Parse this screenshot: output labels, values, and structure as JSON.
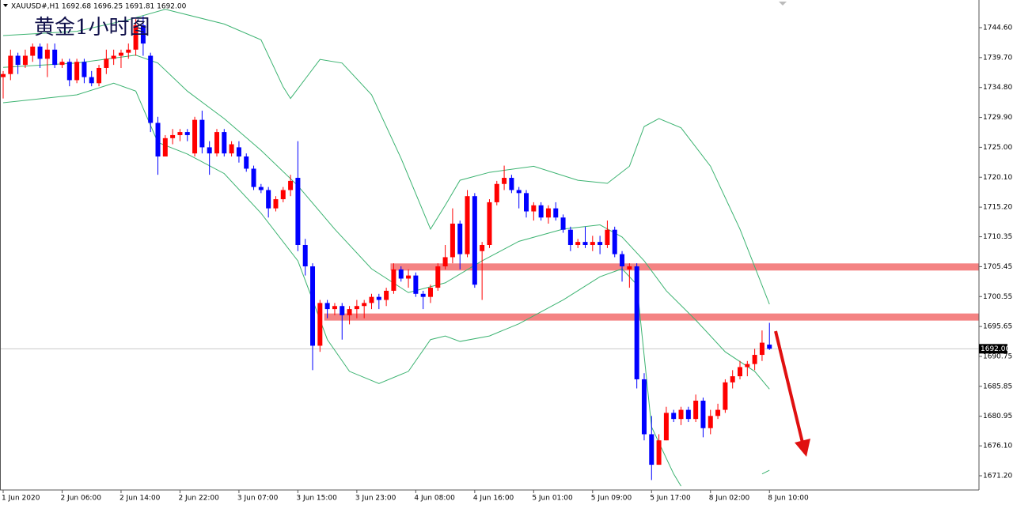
{
  "chart_data": {
    "type": "candlestick",
    "header": "XAUUSD#,H1  1692.68 1696.25 1691.81 1692.00",
    "title": "黄金1小时图",
    "categories": [
      "1 Jun 2020",
      null,
      null,
      null,
      null,
      null,
      null,
      null,
      "2 Jun 06:00",
      null,
      null,
      null,
      null,
      null,
      null,
      null,
      "2 Jun 14:00",
      null,
      null,
      null,
      null,
      null,
      null,
      null,
      "2 Jun 22:00",
      null,
      null,
      null,
      null,
      null,
      null,
      null,
      "3 Jun 07:00",
      null,
      null,
      null,
      null,
      null,
      null,
      null,
      "3 Jun 15:00",
      null,
      null,
      null,
      null,
      null,
      null,
      null,
      "3 Jun 23:00",
      null,
      null,
      null,
      null,
      null,
      null,
      null,
      "4 Jun 08:00",
      null,
      null,
      null,
      null,
      null,
      null,
      null,
      "4 Jun 16:00",
      null,
      null,
      null,
      null,
      null,
      null,
      null,
      "5 Jun 01:00",
      null,
      null,
      null,
      null,
      null,
      null,
      null,
      "5 Jun 09:00",
      null,
      null,
      null,
      null,
      null,
      null,
      null,
      "5 Jun 17:00",
      null,
      null,
      null,
      null,
      null,
      null,
      null,
      "8 Jun 02:00",
      null,
      null,
      null,
      null,
      null,
      null,
      null,
      "8 Jun 10:00"
    ],
    "open": [
      1736.5,
      1737,
      1740,
      1738.5,
      1740,
      1741.5,
      1739.5,
      1741,
      1738.5,
      1739,
      1736,
      1739,
      1736.5,
      1735.5,
      1738,
      1739.5,
      1740,
      1740.5,
      1741,
      1745,
      1740,
      1729,
      1723.5,
      1726.5,
      1727,
      1727.5,
      1724,
      1729.5,
      1725,
      1724,
      1727.5,
      1724,
      1725,
      1723.5,
      1721.5,
      1718.5,
      1718,
      1715,
      1716.5,
      1718,
      1720,
      1709,
      1705.5,
      1692.5,
      1699.5,
      1698.5,
      1699,
      1697.5,
      1698.5,
      1699,
      1699.5,
      1700.5,
      1700,
      1701.5,
      1705,
      1703.5,
      1704,
      1701,
      1700.5,
      1702,
      1705.5,
      1707,
      1712.5,
      1707.5,
      1717,
      1708,
      1709,
      1716,
      1719,
      1720,
      1718,
      1717.5,
      1714.5,
      1715.5,
      1713.5,
      1715,
      1713.5,
      1711.5,
      1709,
      1709.5,
      1709,
      1709.5,
      1709,
      1711.5,
      1707.5,
      1705,
      1705.5,
      1687,
      1678,
      1673,
      1677,
      1681.5,
      1680.5,
      1682,
      1680.5,
      1683.5,
      1679,
      1681,
      1682,
      1686.5,
      1687.5,
      1689,
      1689.5,
      1691,
      1692.68
    ],
    "high": [
      1737.5,
      1741,
      1740.5,
      1741,
      1742,
      1742,
      1742,
      1742,
      1739.5,
      1739.5,
      1739.5,
      1739.5,
      1737.5,
      1738.5,
      1741,
      1741,
      1741,
      1742,
      1746,
      1746.5,
      1740.5,
      1730,
      1727,
      1728,
      1728,
      1728,
      1730,
      1731,
      1726,
      1728,
      1728,
      1726,
      1726,
      1724,
      1722,
      1719,
      1718.5,
      1717,
      1718.5,
      1720.5,
      1726,
      1710,
      1706,
      1700,
      1700,
      1699.5,
      1699.5,
      1699,
      1700,
      1700,
      1701,
      1701,
      1702,
      1706,
      1705.5,
      1705,
      1704.5,
      1701.5,
      1702.5,
      1706,
      1709,
      1715,
      1713,
      1718,
      1717.5,
      1709.5,
      1716.5,
      1719.5,
      1722,
      1720.5,
      1718.5,
      1718,
      1716,
      1716,
      1715.5,
      1716,
      1714,
      1712,
      1710,
      1712,
      1710.5,
      1710.5,
      1713,
      1712,
      1708,
      1706,
      1706,
      1688,
      1681,
      1678,
      1682.5,
      1682,
      1682.5,
      1682.5,
      1684.5,
      1684,
      1682,
      1683,
      1687,
      1688.5,
      1690,
      1690,
      1692,
      1695,
      1696.25
    ],
    "low": [
      1733,
      1736,
      1737,
      1738,
      1739,
      1738,
      1736.5,
      1738,
      1738,
      1735,
      1735.5,
      1735.5,
      1735,
      1735,
      1737,
      1738.5,
      1738,
      1739.5,
      1740,
      1740,
      1727.5,
      1720.5,
      1723.5,
      1725.5,
      1726,
      1726,
      1723.5,
      1724,
      1720.5,
      1723.5,
      1723.5,
      1723.5,
      1722.5,
      1721,
      1718,
      1717.5,
      1713.5,
      1714.5,
      1716,
      1717,
      1708,
      1704,
      1688.5,
      1691.5,
      1697,
      1697.5,
      1693.5,
      1696,
      1697,
      1697,
      1698.5,
      1698.5,
      1699,
      1701,
      1703,
      1702,
      1700.5,
      1698.5,
      1699.5,
      1701.5,
      1705,
      1706,
      1705,
      1707,
      1702,
      1700,
      1708.5,
      1715.5,
      1718,
      1717.5,
      1715,
      1713.5,
      1713,
      1713,
      1712.5,
      1713,
      1711,
      1708,
      1708.5,
      1708.5,
      1708,
      1707.5,
      1708.5,
      1707,
      1703,
      1702,
      1685.5,
      1677,
      1670.5,
      1673,
      1677,
      1680,
      1679.5,
      1680,
      1680,
      1677.5,
      1678,
      1680.5,
      1681.5,
      1685.5,
      1687,
      1687.5,
      1688.5,
      1690,
      1691.81
    ],
    "close": [
      1737,
      1740,
      1738.5,
      1740,
      1741.5,
      1739.5,
      1741,
      1738.5,
      1739,
      1736,
      1739,
      1736.5,
      1735.5,
      1738,
      1739.5,
      1740,
      1740.5,
      1741,
      1745,
      1742,
      1729,
      1723.5,
      1726.5,
      1727,
      1727.5,
      1727,
      1729.5,
      1725,
      1724,
      1727.5,
      1724,
      1725.5,
      1723.5,
      1721.5,
      1718.5,
      1718,
      1715,
      1716.5,
      1718,
      1719.5,
      1709,
      1705.5,
      1692.5,
      1699.5,
      1698.5,
      1699,
      1697.5,
      1698.5,
      1699,
      1699.5,
      1700.5,
      1700,
      1701.5,
      1705,
      1703.5,
      1704,
      1701,
      1700.5,
      1702,
      1705.5,
      1707,
      1712.5,
      1707.5,
      1717,
      1702.5,
      1709,
      1716,
      1719,
      1720,
      1718,
      1717.5,
      1714.5,
      1715.5,
      1713.5,
      1715,
      1713.5,
      1711.5,
      1709,
      1709.5,
      1709,
      1709.5,
      1709,
      1711.5,
      1707.5,
      1705.5,
      1705.5,
      1687,
      1678,
      1673,
      1677,
      1681.5,
      1680.5,
      1682,
      1680.5,
      1683.5,
      1679,
      1681,
      1682,
      1686.5,
      1687.5,
      1689,
      1689.5,
      1691,
      1693,
      1692
    ],
    "up_color": "#ff0000",
    "down_color": "#0000ff",
    "bands": [
      {
        "color": "#3cb371",
        "x": [
          0,
          10,
          17,
          22,
          30,
          35,
          38,
          39,
          41,
          43,
          46,
          50,
          54,
          58,
          60,
          62,
          66,
          72,
          78,
          82,
          85,
          87,
          89,
          92,
          96,
          100,
          104
        ],
        "values": [
          1743.3,
          1744,
          1745.9,
          1747.6,
          1745.2,
          1742.6,
          1734.9,
          1733,
          1736.2,
          1739.4,
          1738.8,
          1733.6,
          1723.2,
          1711.6,
          1715.5,
          1719.6,
          1720.9,
          1721.9,
          1719.6,
          1719.1,
          1721.9,
          1728.4,
          1729.7,
          1728.2,
          1721.9,
          1711.6,
          1699.3
        ]
      },
      {
        "color": "#3cb371",
        "x": [
          0,
          10,
          18,
          21,
          25,
          30,
          35,
          40,
          45,
          50,
          55,
          60,
          65,
          70,
          76,
          81,
          84,
          87,
          90,
          94,
          98,
          102,
          104
        ],
        "values": [
          1738.1,
          1738.8,
          1740.1,
          1738.8,
          1734.2,
          1729.7,
          1724.5,
          1718.7,
          1711.6,
          1705.1,
          1701.2,
          1702.8,
          1706.4,
          1709.6,
          1711.6,
          1712.3,
          1710.3,
          1706.4,
          1701.5,
          1696.7,
          1691.5,
          1688.3,
          1685.4
        ]
      },
      {
        "color": "#3cb371",
        "x": [
          0,
          10,
          15,
          18,
          21,
          25,
          30,
          35,
          40,
          42,
          44,
          47,
          51,
          55,
          58,
          60,
          62,
          66,
          70,
          76,
          81,
          84,
          86,
          88,
          91,
          92,
          93,
          103,
          104
        ],
        "values": [
          1732.3,
          1733.6,
          1735.5,
          1734.2,
          1725.8,
          1723.9,
          1720.7,
          1714.2,
          1706.4,
          1700,
          1693.5,
          1688.3,
          1686.3,
          1688.3,
          1693.5,
          1694.1,
          1693.2,
          1694.1,
          1696.1,
          1700,
          1703.8,
          1705.1,
          1702.5,
          1679.2,
          1671.5,
          1669.5,
          null,
          1671.5,
          1672.1
        ]
      }
    ],
    "levels": [
      {
        "value": 1705.4,
        "start": 53
      },
      {
        "value": 1697.2,
        "start": 44
      }
    ],
    "last_price": {
      "value": 1692,
      "label": "1692.00"
    },
    "ylim": [
      1668.87,
      1749.13
    ],
    "yticks": [
      {
        "value": 1744.6,
        "label": "1744.60"
      },
      {
        "value": 1739.7,
        "label": "1739.70"
      },
      {
        "value": 1734.8,
        "label": "1734.80"
      },
      {
        "value": 1729.9,
        "label": "1729.90"
      },
      {
        "value": 1725,
        "label": "1725.00"
      },
      {
        "value": 1720.1,
        "label": "1720.10"
      },
      {
        "value": 1715.2,
        "label": "1715.20"
      },
      {
        "value": 1710.35,
        "label": "1710.35"
      },
      {
        "value": 1705.45,
        "label": "1705.45"
      },
      {
        "value": 1700.55,
        "label": "1700.55"
      },
      {
        "value": 1695.65,
        "label": "1695.65"
      },
      {
        "value": 1690.75,
        "label": "1690.75"
      },
      {
        "value": 1685.85,
        "label": "1685.85"
      },
      {
        "value": 1680.95,
        "label": "1680.95"
      },
      {
        "value": 1676.1,
        "label": "1676.10"
      },
      {
        "value": 1671.2,
        "label": "1671.20"
      }
    ]
  }
}
